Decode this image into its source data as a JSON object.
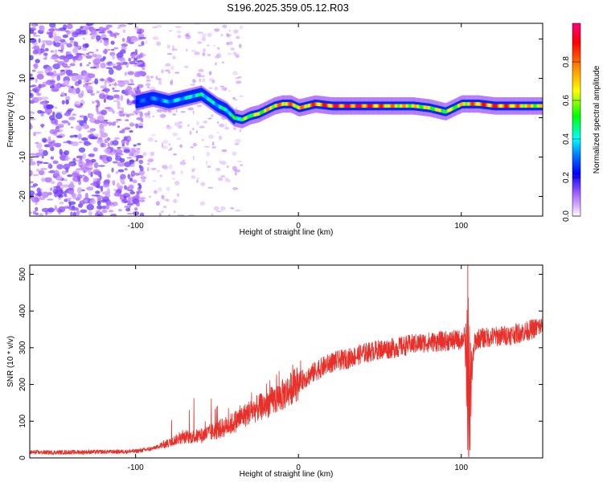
{
  "title": "S196.2025.359.05.12.R03",
  "chart_data": [
    {
      "type": "heatmap",
      "xlabel": "Height of straight line (km)",
      "ylabel": "Frequency (Hz)",
      "xlim": [
        -165,
        150
      ],
      "ylim": [
        -25,
        24
      ],
      "xticks": [
        -100,
        0,
        100
      ],
      "xtick_labels": [
        "-100",
        "0",
        "100"
      ],
      "yticks": [
        -20,
        -10,
        0,
        10,
        20
      ],
      "ytick_labels": [
        "-20",
        "-10",
        "0",
        "10",
        "20"
      ],
      "colorbar": {
        "label": "Normalized spectral amplitude",
        "range": [
          0,
          1
        ],
        "ticks": [
          0.0,
          0.2,
          0.4,
          0.6,
          0.8
        ],
        "tick_labels": [
          "0.0",
          "0.2",
          "0.4",
          "0.6",
          "0.8"
        ],
        "colors": [
          "#ffffff",
          "#a35cff",
          "#0000ff",
          "#00ffff",
          "#00ff00",
          "#ffff00",
          "#ff8000",
          "#ff0000",
          "#ff0080"
        ]
      },
      "ridge": {
        "x": [
          -100,
          -90,
          -80,
          -70,
          -60,
          -50,
          -45,
          -40,
          -35,
          -30,
          -25,
          -20,
          -15,
          -10,
          -5,
          0,
          5,
          10,
          20,
          30,
          40,
          50,
          60,
          70,
          80,
          85,
          90,
          95,
          100,
          105,
          110,
          120,
          130,
          140,
          150
        ],
        "freq": [
          4,
          5,
          4,
          5,
          6,
          3,
          2,
          0,
          -0.5,
          0.5,
          1,
          2,
          3,
          3.5,
          3.5,
          2.5,
          3,
          3.5,
          3,
          3,
          3,
          3,
          3,
          3,
          2.5,
          2,
          1.5,
          2.5,
          3.5,
          3.5,
          3.5,
          3,
          3,
          3,
          3
        ],
        "amplitude": [
          0.3,
          0.35,
          0.4,
          0.45,
          0.5,
          0.45,
          0.5,
          0.55,
          0.6,
          0.65,
          0.7,
          0.75,
          0.8,
          0.85,
          0.85,
          0.8,
          0.85,
          0.9,
          0.95,
          0.98,
          0.98,
          0.9,
          0.8,
          0.75,
          0.7,
          0.7,
          0.65,
          0.7,
          0.75,
          0.85,
          0.9,
          0.95,
          0.9,
          0.8,
          0.7
        ]
      }
    },
    {
      "type": "line",
      "xlabel": "Height of straight line (km)",
      "ylabel": "SNR (10 * v/v)",
      "xlim": [
        -165,
        150
      ],
      "ylim": [
        0,
        525
      ],
      "xticks": [
        -100,
        0,
        100
      ],
      "xtick_labels": [
        "-100",
        "0",
        "100"
      ],
      "yticks": [
        0,
        100,
        200,
        300,
        400,
        500
      ],
      "ytick_labels": [
        "0",
        "100",
        "200",
        "300",
        "400",
        "500"
      ],
      "color": "#e8302a",
      "series": [
        {
          "name": "SNR",
          "x": [
            -165,
            -150,
            -130,
            -110,
            -100,
            -90,
            -80,
            -75,
            -70,
            -60,
            -50,
            -40,
            -30,
            -20,
            -10,
            0,
            10,
            20,
            30,
            40,
            50,
            60,
            70,
            80,
            90,
            100,
            102,
            105,
            108,
            110,
            120,
            130,
            140,
            150
          ],
          "y": [
            15,
            15,
            16,
            17,
            18,
            25,
            40,
            50,
            55,
            60,
            75,
            95,
            125,
            145,
            170,
            205,
            235,
            260,
            270,
            285,
            295,
            300,
            310,
            315,
            318,
            322,
            330,
            160,
            310,
            325,
            330,
            335,
            345,
            360
          ]
        }
      ],
      "notable_spikes": [
        {
          "x": 104,
          "y": 525
        },
        {
          "x": 104.5,
          "y": 5
        }
      ]
    }
  ]
}
